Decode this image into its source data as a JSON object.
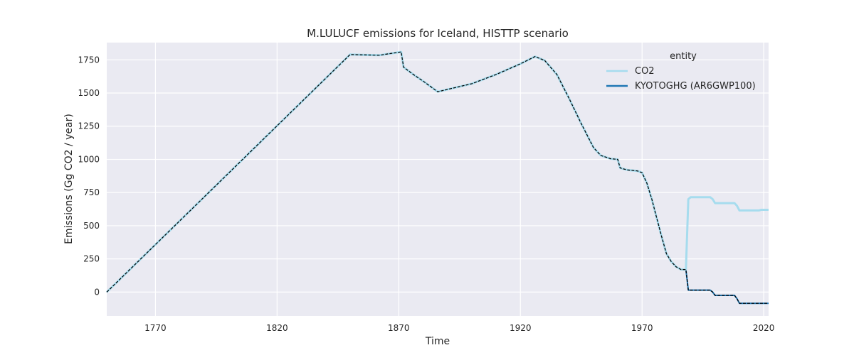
{
  "chart_data": {
    "type": "line",
    "title": "M.LULUCF emissions for Iceland, HISTTP scenario",
    "xlabel": "Time",
    "ylabel": "Emissions (Gg CO2 / year)",
    "xlim": [
      1750,
      2022
    ],
    "ylim": [
      -180,
      1880
    ],
    "xticks": [
      1770,
      1820,
      1870,
      1920,
      1970,
      2020
    ],
    "yticks": [
      0,
      250,
      500,
      750,
      1000,
      1250,
      1500,
      1750
    ],
    "grid": true,
    "legend": {
      "title": "entity",
      "placement": "top-right"
    },
    "colors": {
      "background": "#eaeaf2",
      "grid": "#ffffff",
      "co2": "#a6dcee",
      "kyoto": "#1f77b4",
      "dashed": "#000000"
    },
    "series": [
      {
        "name": "CO2",
        "style": "solid",
        "x": [
          1750,
          1850,
          1862,
          1871,
          1872,
          1876,
          1880,
          1886,
          1900,
          1910,
          1920,
          1926,
          1930,
          1935,
          1940,
          1945,
          1950,
          1953,
          1957,
          1960,
          1961,
          1964,
          1968,
          1970,
          1972,
          1974,
          1976,
          1978,
          1980,
          1982,
          1984,
          1986,
          1988,
          1989,
          1990,
          1998,
          1999,
          2000,
          2008,
          2009,
          2010,
          2018,
          2019,
          2022
        ],
        "y": [
          0,
          1790,
          1785,
          1810,
          1695,
          1640,
          1590,
          1510,
          1570,
          1640,
          1720,
          1775,
          1745,
          1640,
          1460,
          1270,
          1090,
          1030,
          1005,
          1000,
          935,
          920,
          913,
          900,
          820,
          700,
          560,
          420,
          290,
          230,
          190,
          170,
          170,
          700,
          715,
          715,
          700,
          670,
          670,
          650,
          615,
          615,
          620,
          620
        ]
      },
      {
        "name": "KYOTOGHG (AR6GWP100)",
        "style": "dashed",
        "x": [
          1750,
          1850,
          1862,
          1871,
          1872,
          1876,
          1880,
          1886,
          1900,
          1910,
          1920,
          1926,
          1930,
          1935,
          1940,
          1945,
          1950,
          1953,
          1957,
          1960,
          1961,
          1964,
          1968,
          1970,
          1972,
          1974,
          1976,
          1978,
          1980,
          1982,
          1984,
          1986,
          1988,
          1989,
          1990,
          1998,
          1999,
          2000,
          2008,
          2009,
          2010,
          2022
        ],
        "y": [
          0,
          1790,
          1785,
          1810,
          1695,
          1640,
          1590,
          1510,
          1570,
          1640,
          1720,
          1775,
          1745,
          1640,
          1460,
          1270,
          1090,
          1030,
          1005,
          1000,
          935,
          920,
          913,
          900,
          820,
          700,
          560,
          420,
          290,
          230,
          190,
          170,
          170,
          15,
          15,
          15,
          0,
          -25,
          -25,
          -50,
          -85,
          -85
        ]
      }
    ]
  }
}
